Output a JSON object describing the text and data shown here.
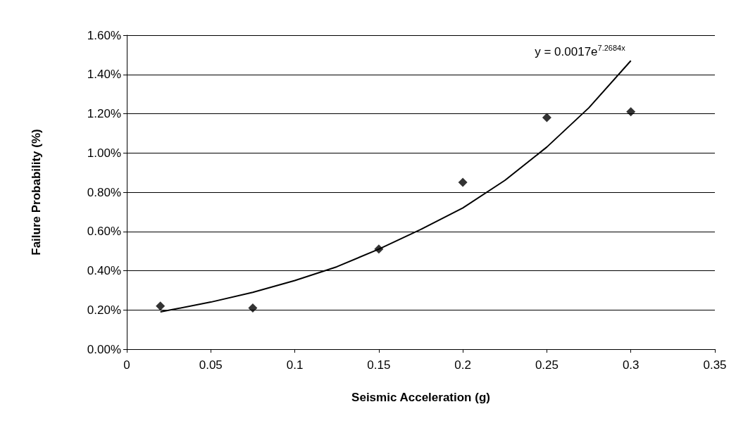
{
  "chart_data": {
    "type": "scatter",
    "xlabel": "Seismic Acceleration (g)",
    "ylabel": "Failure Probability (%)",
    "x": [
      0.02,
      0.075,
      0.15,
      0.2,
      0.25,
      0.3
    ],
    "series": [
      {
        "color": "#000000",
        "marker": "diamond",
        "values": [
          0.22,
          0.21,
          0.51,
          0.85,
          1.18,
          1.21
        ]
      },
      {
        "type": "line",
        "color": "#000000",
        "marker": "none",
        "line_style": "solid",
        "x": [
          0.02,
          0.05,
          0.075,
          0.1,
          0.125,
          0.15,
          0.175,
          0.2,
          0.225,
          0.25,
          0.275,
          0.3
        ],
        "values": [
          0.19,
          0.24,
          0.29,
          0.35,
          0.42,
          0.51,
          0.61,
          0.72,
          0.86,
          1.03,
          1.23,
          1.47
        ]
      }
    ],
    "xlim": [
      0,
      0.35
    ],
    "xticks": [
      0,
      0.05,
      0.1,
      0.15,
      0.2,
      0.25,
      0.3,
      0.35
    ],
    "ylim": [
      0,
      1.6
    ],
    "yticks": [
      {
        "value": 0,
        "label": "0.00%"
      },
      {
        "value": 0.2,
        "label": "0.20%"
      },
      {
        "value": 0.4,
        "label": "0.40%"
      },
      {
        "value": 0.6,
        "label": "0.60%"
      },
      {
        "value": 0.8,
        "label": "0.80%"
      },
      {
        "value": 1.0,
        "label": "1.00%"
      },
      {
        "value": 1.2,
        "label": "1.20%"
      },
      {
        "value": 1.4,
        "label": "1.40%"
      },
      {
        "value": 1.6,
        "label": "1.60%"
      }
    ],
    "grid": "y",
    "annotations": [
      {
        "text": "y = 0.0017e$^{7.2684x}$",
        "x": 0.3,
        "y": 1.47
      }
    ]
  }
}
